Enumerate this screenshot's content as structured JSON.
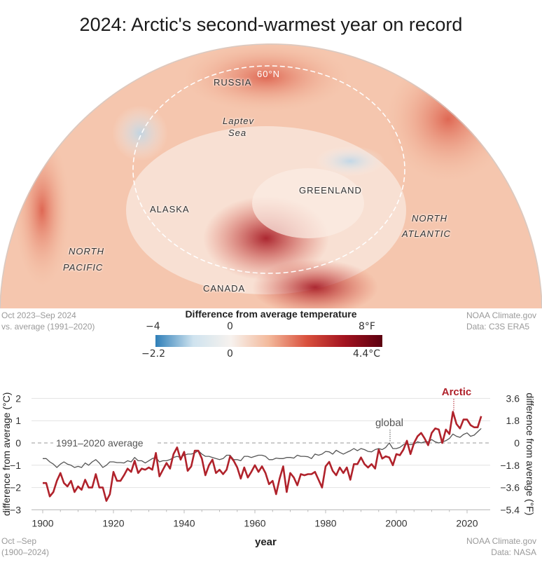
{
  "title": "2024: Arctic's second-warmest year on record",
  "map": {
    "labels": {
      "russia": "RUSSIA",
      "lat": "60°N",
      "laptev": "Laptev",
      "laptev2": "Sea",
      "greenland": "GREENLAND",
      "alaska": "ALASKA",
      "north_atlantic": "NORTH",
      "north_atlantic2": "ATLANTIC",
      "north_pacific": "NORTH",
      "north_pacific2": "PACIFIC",
      "canada": "CANADA"
    },
    "period": "Oct 2023–Sep 2024",
    "baseline": "vs. average (1991–2020)",
    "credit": "NOAA Climate.gov",
    "source": "Data: C3S ERA5",
    "legend": {
      "title": "Difference from average temperature",
      "f_min": "−4",
      "f_zero": "0",
      "f_max": "8°F",
      "c_min": "−2.2",
      "c_zero": "0",
      "c_max": "4.4°C",
      "colors": [
        "#2f7fb8",
        "#cfe3ef",
        "#f7f2ee",
        "#f3b99b",
        "#d9503d",
        "#a3131f",
        "#5c0010"
      ]
    }
  },
  "chart_data": {
    "type": "line",
    "xlabel": "year",
    "ylabel": "difference from average (°C)",
    "ylabel_right": "difference from average (°F)",
    "xlim": [
      1900,
      2024
    ],
    "ylim": [
      -3,
      2
    ],
    "x_ticks": [
      "1900",
      "1920",
      "1940",
      "1960",
      "1980",
      "2000",
      "2020"
    ],
    "y_ticks": [
      "2",
      "1",
      "0",
      "−1",
      "−2",
      "−3"
    ],
    "y_ticks_right": [
      "3.6",
      "1.8",
      "0",
      "−1.8",
      "−3.6",
      "−5.4"
    ],
    "reference_label": "1991–2020 average",
    "grid": true,
    "x_start": 1900,
    "series": [
      {
        "name": "Arctic",
        "color": "#b0222b",
        "values": [
          -1.8,
          -1.8,
          -2.4,
          -2.2,
          -1.7,
          -1.35,
          -1.8,
          -1.95,
          -1.7,
          -2.2,
          -1.95,
          -2.1,
          -1.65,
          -2.0,
          -2.0,
          -1.4,
          -2.0,
          -2.0,
          -2.6,
          -2.3,
          -1.3,
          -1.7,
          -1.7,
          -1.45,
          -1.15,
          -1.3,
          -0.8,
          -1.35,
          -1.15,
          -1.2,
          -1.1,
          -1.2,
          -0.45,
          -1.5,
          -1.2,
          -0.9,
          -1.15,
          -0.5,
          -0.2,
          -0.75,
          -0.4,
          -1.25,
          -1.05,
          -0.35,
          -0.35,
          -0.7,
          -1.45,
          -1.0,
          -0.75,
          -1.35,
          -1.2,
          -1.4,
          -1.2,
          -0.6,
          -0.8,
          -1.1,
          -1.6,
          -1.1,
          -1.55,
          -1.3,
          -1.0,
          -1.3,
          -1.05,
          -1.35,
          -1.85,
          -1.7,
          -2.3,
          -1.6,
          -1.05,
          -2.2,
          -1.35,
          -1.55,
          -1.9,
          -1.4,
          -1.45,
          -1.4,
          -1.4,
          -1.3,
          -1.65,
          -2.0,
          -1.05,
          -0.85,
          -1.25,
          -1.45,
          -1.1,
          -1.35,
          -1.1,
          -1.65,
          -0.95,
          -0.95,
          -0.65,
          -0.95,
          -1.1,
          -0.95,
          -1.15,
          -0.3,
          -0.7,
          -0.6,
          -0.65,
          -1.0,
          -0.5,
          -0.55,
          -0.3,
          0.1,
          -0.5,
          0.0,
          0.3,
          0.45,
          0.2,
          -0.1,
          0.45,
          0.65,
          0.6,
          0.0,
          0.6,
          0.4,
          1.4,
          0.85,
          0.65,
          1.05,
          1.05,
          0.8,
          0.7,
          0.7,
          1.2
        ]
      },
      {
        "name": "global",
        "color": "#555555",
        "values": [
          -0.7,
          -0.7,
          -0.85,
          -0.95,
          -1.1,
          -0.95,
          -0.85,
          -0.95,
          -1.0,
          -1.1,
          -1.05,
          -1.1,
          -0.9,
          -1.0,
          -0.85,
          -0.75,
          -0.9,
          -1.1,
          -1.0,
          -0.85,
          -0.85,
          -0.88,
          -0.88,
          -0.9,
          -0.8,
          -0.85,
          -0.65,
          -0.8,
          -0.8,
          -0.9,
          -0.8,
          -0.7,
          -0.65,
          -0.85,
          -0.8,
          -0.8,
          -0.75,
          -0.65,
          -0.6,
          -0.65,
          -0.55,
          -0.5,
          -0.5,
          -0.45,
          -0.35,
          -0.5,
          -0.6,
          -0.6,
          -0.65,
          -0.7,
          -0.75,
          -0.7,
          -0.55,
          -0.55,
          -0.75,
          -0.75,
          -0.8,
          -0.6,
          -0.6,
          -0.65,
          -0.6,
          -0.55,
          -0.55,
          -0.6,
          -0.75,
          -0.75,
          -0.68,
          -0.7,
          -0.7,
          -0.65,
          -0.65,
          -0.68,
          -0.55,
          -0.6,
          -0.6,
          -0.62,
          -0.7,
          -0.5,
          -0.55,
          -0.5,
          -0.38,
          -0.4,
          -0.5,
          -0.33,
          -0.42,
          -0.5,
          -0.42,
          -0.35,
          -0.25,
          -0.35,
          -0.25,
          -0.3,
          -0.38,
          -0.4,
          -0.3,
          -0.25,
          -0.3,
          -0.2,
          0.0,
          -0.25,
          -0.25,
          -0.2,
          -0.08,
          -0.05,
          -0.08,
          -0.05,
          0.05,
          0.0,
          0.05,
          0.05,
          0.15,
          0.05,
          0.0,
          0.05,
          0.1,
          0.2,
          0.4,
          0.3,
          0.25,
          0.38,
          0.45,
          0.3,
          0.35,
          0.5,
          0.65
        ]
      }
    ],
    "period": "Oct –Sep",
    "period_range": "(1900–2024)",
    "credit": "NOAA Climate.gov",
    "source": "Data: NASA"
  }
}
